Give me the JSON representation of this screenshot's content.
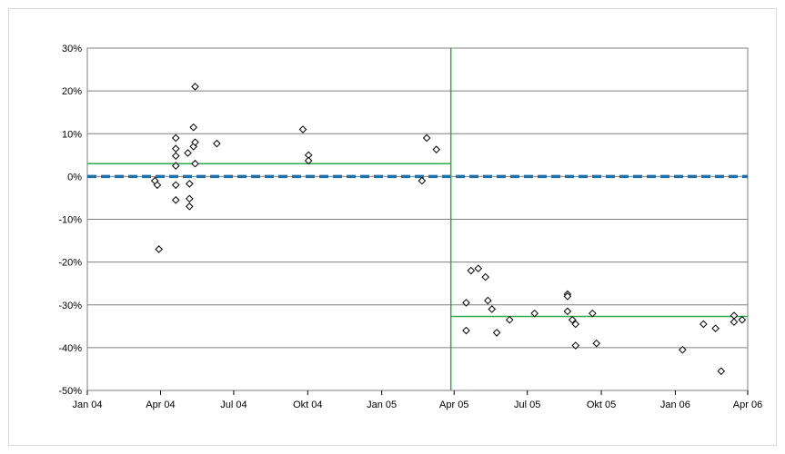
{
  "chart_data": {
    "type": "scatter",
    "title": "",
    "xlabel": "",
    "ylabel": "",
    "x_tick_labels": [
      "Jan 04",
      "Apr 04",
      "Jul 04",
      "Okt 04",
      "Jan 05",
      "Apr 05",
      "Jul 05",
      "Okt 05",
      "Jan 06",
      "Apr 06"
    ],
    "x_tick_dates": [
      "2004-01-01",
      "2004-04-01",
      "2004-07-01",
      "2004-10-01",
      "2005-01-01",
      "2005-04-01",
      "2005-07-01",
      "2005-10-01",
      "2006-01-01",
      "2006-04-01"
    ],
    "xlim": [
      "2004-01-01",
      "2006-04-01"
    ],
    "y_tick_labels": [
      "30%",
      "20%",
      "10%",
      "0%",
      "-10%",
      "-20%",
      "-30%",
      "-40%",
      "-50%"
    ],
    "y_tick_values": [
      30,
      20,
      10,
      0,
      -10,
      -20,
      -30,
      -40,
      -50
    ],
    "ylim": [
      -50,
      30
    ],
    "y_unit": "percent",
    "grid": "horizontal",
    "legend": "none",
    "colors": {
      "markers": "#000000",
      "zero_line": "#1f6fa8",
      "reference_lines": "#2ea84a",
      "gridlines": "#7f7f7f",
      "plot_border": "#7f7f7f"
    },
    "series": [
      {
        "marker": "diamond",
        "points": [
          {
            "x": "2004-03-25",
            "y": -1
          },
          {
            "x": "2004-03-28",
            "y": -2
          },
          {
            "x": "2004-03-30",
            "y": -17
          },
          {
            "x": "2004-04-20",
            "y": 9
          },
          {
            "x": "2004-04-20",
            "y": 6.5
          },
          {
            "x": "2004-04-20",
            "y": 4.8
          },
          {
            "x": "2004-04-20",
            "y": 2.5
          },
          {
            "x": "2004-04-20",
            "y": -2
          },
          {
            "x": "2004-04-20",
            "y": -5.5
          },
          {
            "x": "2004-05-05",
            "y": 5.5
          },
          {
            "x": "2004-05-07",
            "y": -1.7
          },
          {
            "x": "2004-05-07",
            "y": -5.2
          },
          {
            "x": "2004-05-07",
            "y": -7
          },
          {
            "x": "2004-05-12",
            "y": 11.5
          },
          {
            "x": "2004-05-12",
            "y": 7
          },
          {
            "x": "2004-05-14",
            "y": 21
          },
          {
            "x": "2004-05-14",
            "y": 8
          },
          {
            "x": "2004-05-14",
            "y": 3
          },
          {
            "x": "2004-06-10",
            "y": 7.7
          },
          {
            "x": "2004-09-25",
            "y": 11
          },
          {
            "x": "2004-10-02",
            "y": 5
          },
          {
            "x": "2004-10-02",
            "y": 3.7
          },
          {
            "x": "2005-02-20",
            "y": -1
          },
          {
            "x": "2005-02-26",
            "y": 9
          },
          {
            "x": "2005-03-10",
            "y": 6.3
          },
          {
            "x": "2005-04-16",
            "y": -29.5
          },
          {
            "x": "2005-04-16",
            "y": -36
          },
          {
            "x": "2005-04-22",
            "y": -22
          },
          {
            "x": "2005-05-01",
            "y": -21.5
          },
          {
            "x": "2005-05-10",
            "y": -23.5
          },
          {
            "x": "2005-05-13",
            "y": -29
          },
          {
            "x": "2005-05-18",
            "y": -31
          },
          {
            "x": "2005-05-24",
            "y": -36.5
          },
          {
            "x": "2005-06-09",
            "y": -33.5
          },
          {
            "x": "2005-07-10",
            "y": -32
          },
          {
            "x": "2005-08-20",
            "y": -27.5
          },
          {
            "x": "2005-08-20",
            "y": -28
          },
          {
            "x": "2005-08-20",
            "y": -31.5
          },
          {
            "x": "2005-08-26",
            "y": -33.5
          },
          {
            "x": "2005-08-30",
            "y": -34.5
          },
          {
            "x": "2005-08-30",
            "y": -39.5
          },
          {
            "x": "2005-09-20",
            "y": -32
          },
          {
            "x": "2005-09-25",
            "y": -39
          },
          {
            "x": "2006-01-10",
            "y": -40.5
          },
          {
            "x": "2006-02-05",
            "y": -34.5
          },
          {
            "x": "2006-02-20",
            "y": -35.5
          },
          {
            "x": "2006-02-27",
            "y": -45.5
          },
          {
            "x": "2006-03-15",
            "y": -32.5
          },
          {
            "x": "2006-03-15",
            "y": -34
          },
          {
            "x": "2006-03-25",
            "y": -33.5
          }
        ]
      }
    ],
    "reference_lines": [
      {
        "kind": "horizontal",
        "y": 0,
        "x_from": "2004-01-01",
        "x_to": "2006-04-01",
        "style": "dashed",
        "color": "#1f6fa8"
      },
      {
        "kind": "horizontal",
        "y": 3,
        "x_from": "2004-01-01",
        "x_to": "2005-03-28",
        "style": "solid",
        "color": "#2ea84a"
      },
      {
        "kind": "horizontal",
        "y": -32.7,
        "x_from": "2005-03-28",
        "x_to": "2006-04-01",
        "style": "solid",
        "color": "#2ea84a"
      },
      {
        "kind": "vertical",
        "x": "2005-03-28",
        "style": "solid",
        "color": "#2ea84a"
      }
    ]
  }
}
